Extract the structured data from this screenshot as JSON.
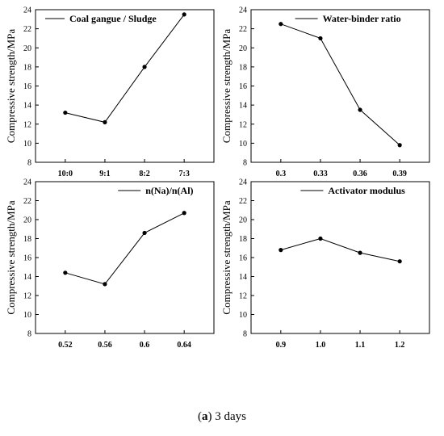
{
  "caption": {
    "label": "a",
    "text": "3 days"
  },
  "chart_data": [
    {
      "type": "line",
      "categories": [
        "10:0",
        "9:1",
        "8:2",
        "7:3"
      ],
      "series": [
        {
          "name": "Coal gangue / Sludge",
          "values": [
            13.2,
            12.2,
            18.0,
            23.5
          ]
        }
      ],
      "ylabel": "Compressive strength/MPa",
      "ylim": [
        8,
        24
      ],
      "yticks": [
        "8",
        "10",
        "12",
        "14",
        "16",
        "18",
        "20",
        "22",
        "24"
      ],
      "legend": "top-left",
      "grid": false
    },
    {
      "type": "line",
      "categories": [
        "0.3",
        "0.33",
        "0.36",
        "0.39"
      ],
      "series": [
        {
          "name": "Water-binder ratio",
          "values": [
            22.5,
            21.0,
            13.5,
            9.8
          ]
        }
      ],
      "ylabel": "Compressive strength/MPa",
      "ylim": [
        8,
        24
      ],
      "yticks": [
        "8",
        "10",
        "12",
        "14",
        "16",
        "18",
        "20",
        "22",
        "24"
      ],
      "legend": "top-right",
      "grid": false
    },
    {
      "type": "line",
      "categories": [
        "0.52",
        "0.56",
        "0.6",
        "0.64"
      ],
      "series": [
        {
          "name": "n(Na)/n(Al)",
          "values": [
            14.4,
            13.2,
            18.6,
            20.7
          ]
        }
      ],
      "ylabel": "Compressive strength/MPa",
      "ylim": [
        8,
        24
      ],
      "yticks": [
        "8",
        "10",
        "12",
        "14",
        "16",
        "18",
        "20",
        "22",
        "24"
      ],
      "legend": "top-right",
      "grid": false
    },
    {
      "type": "line",
      "categories": [
        "0.9",
        "1.0",
        "1.1",
        "1.2"
      ],
      "series": [
        {
          "name": "Activator modulus",
          "values": [
            16.8,
            18.0,
            16.5,
            15.6
          ]
        }
      ],
      "ylabel": "Compressive strength/MPa",
      "ylim": [
        8,
        24
      ],
      "yticks": [
        "8",
        "10",
        "12",
        "14",
        "16",
        "18",
        "20",
        "22",
        "24"
      ],
      "legend": "top-right",
      "grid": false
    }
  ]
}
